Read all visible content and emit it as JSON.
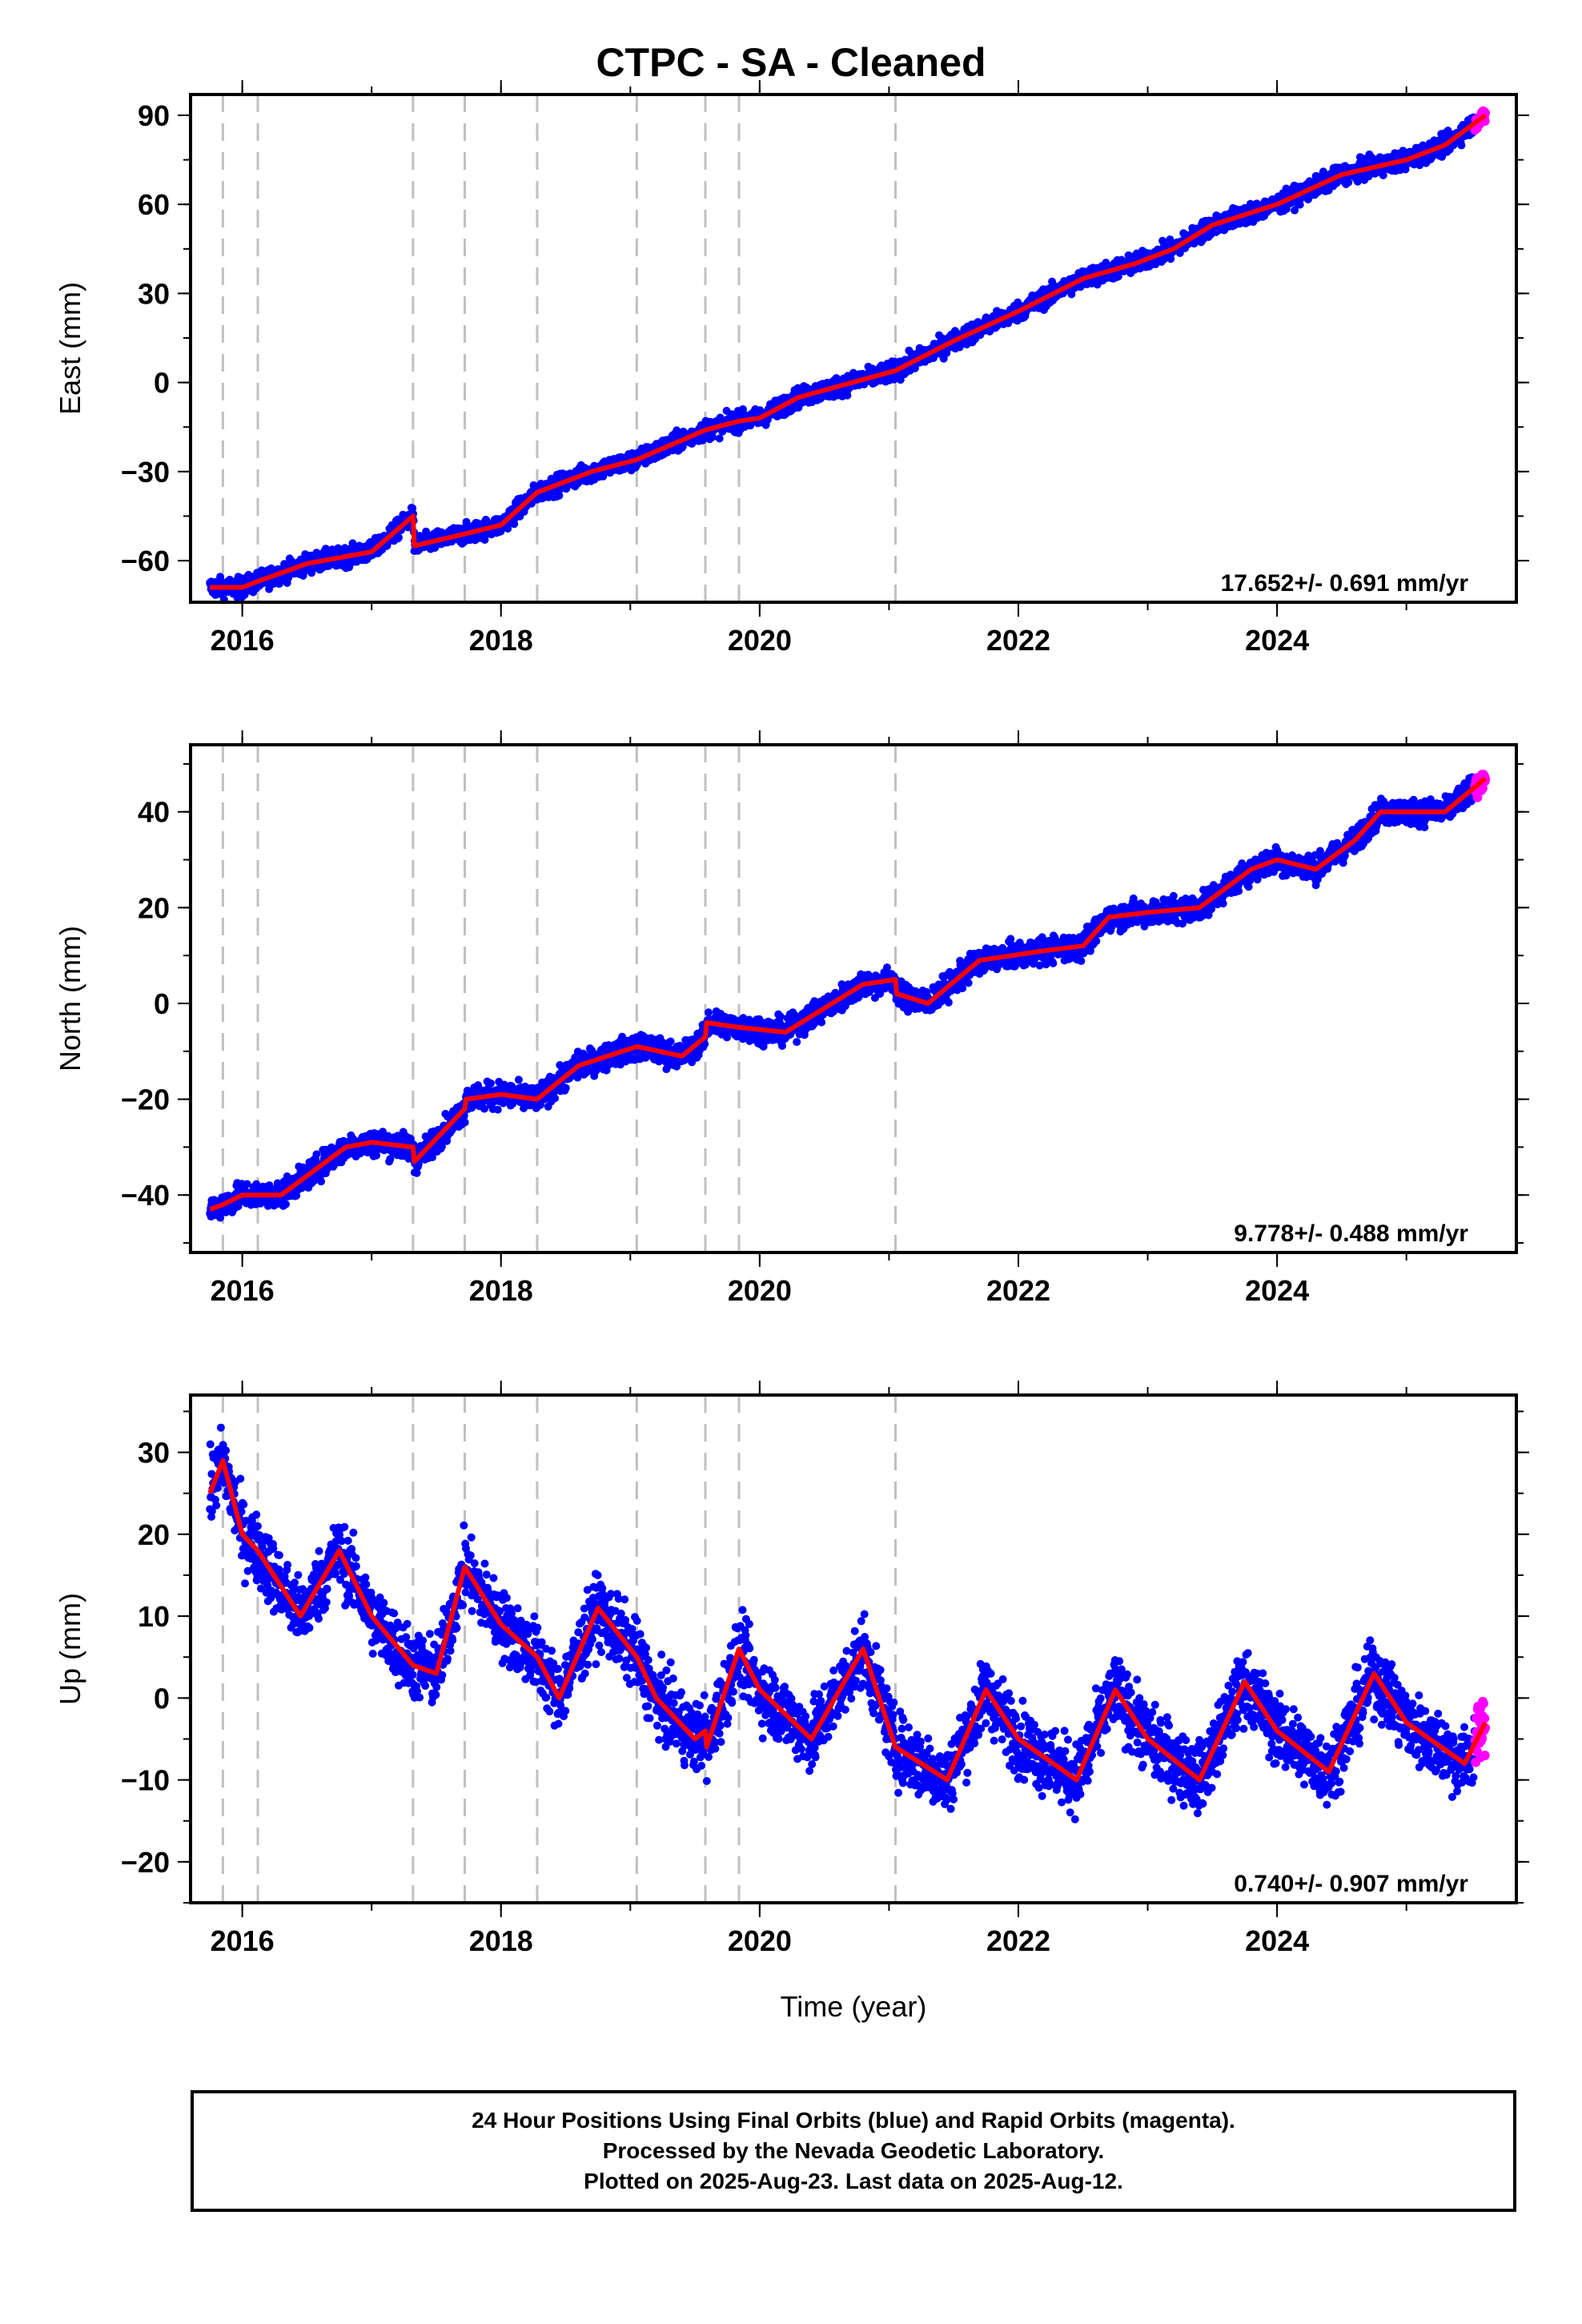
{
  "colors": {
    "final": "#0000ff",
    "rapid": "#ff00ff",
    "model": "#ff0000",
    "events": "#c0c0c0"
  },
  "chart_data": {
    "type": "scatter",
    "title": "CTPC  - SA - Cleaned",
    "xlabel": "Time (year)",
    "events": [
      2015.85,
      2016.12,
      2017.32,
      2017.72,
      2018.28,
      2019.05,
      2019.58,
      2019.84,
      2021.05
    ],
    "final_range": [
      2015.75,
      2025.53
    ],
    "rapid_range": [
      2025.53,
      2025.61
    ],
    "panels": [
      {
        "name": "east",
        "ylabel": "East (mm)",
        "xticks": [
          "2016",
          "2018",
          "2020",
          "2022",
          "2024"
        ],
        "xlim": [
          2015.6,
          2025.85
        ],
        "yticks": [
          "−60",
          "−30",
          "0",
          "30",
          "60",
          "90"
        ],
        "ylim": [
          -74,
          97
        ],
        "rate": "17.652+/- 0.691 mm/yr",
        "model": [
          [
            2015.75,
            -69
          ],
          [
            2015.85,
            -69
          ],
          [
            2016.0,
            -69
          ],
          [
            2016.12,
            -67
          ],
          [
            2016.5,
            -61
          ],
          [
            2017.0,
            -57
          ],
          [
            2017.32,
            -45
          ],
          [
            2017.33,
            -55
          ],
          [
            2017.72,
            -51
          ],
          [
            2018.0,
            -48
          ],
          [
            2018.28,
            -37
          ],
          [
            2018.7,
            -30
          ],
          [
            2019.05,
            -26
          ],
          [
            2019.58,
            -16
          ],
          [
            2019.84,
            -13
          ],
          [
            2020.0,
            -12
          ],
          [
            2020.3,
            -5
          ],
          [
            2020.8,
            1
          ],
          [
            2021.05,
            4
          ],
          [
            2021.5,
            14
          ],
          [
            2022.0,
            24
          ],
          [
            2022.5,
            35
          ],
          [
            2022.9,
            40
          ],
          [
            2023.2,
            45
          ],
          [
            2023.5,
            53
          ],
          [
            2024.0,
            60
          ],
          [
            2024.5,
            70
          ],
          [
            2025.0,
            75
          ],
          [
            2025.3,
            80
          ],
          [
            2025.61,
            90
          ]
        ],
        "scatter_amp": 3
      },
      {
        "name": "north",
        "ylabel": "North (mm)",
        "xticks": [
          "2016",
          "2018",
          "2020",
          "2022",
          "2024"
        ],
        "xlim": [
          2015.6,
          2025.85
        ],
        "yticks": [
          "−40",
          "−20",
          "0",
          "20",
          "40"
        ],
        "ylim": [
          -52,
          54
        ],
        "rate": "9.778+/- 0.488 mm/yr",
        "model": [
          [
            2015.75,
            -43
          ],
          [
            2015.85,
            -42
          ],
          [
            2016.0,
            -40
          ],
          [
            2016.12,
            -40
          ],
          [
            2016.3,
            -40
          ],
          [
            2016.5,
            -36
          ],
          [
            2016.8,
            -30
          ],
          [
            2017.0,
            -29
          ],
          [
            2017.32,
            -30
          ],
          [
            2017.33,
            -33
          ],
          [
            2017.72,
            -22
          ],
          [
            2017.73,
            -20
          ],
          [
            2018.0,
            -19
          ],
          [
            2018.28,
            -20
          ],
          [
            2018.6,
            -13
          ],
          [
            2019.05,
            -9
          ],
          [
            2019.4,
            -11
          ],
          [
            2019.58,
            -7
          ],
          [
            2019.59,
            -4
          ],
          [
            2019.84,
            -5
          ],
          [
            2020.2,
            -6
          ],
          [
            2020.5,
            -1
          ],
          [
            2020.8,
            4
          ],
          [
            2021.05,
            5
          ],
          [
            2021.06,
            2
          ],
          [
            2021.3,
            0
          ],
          [
            2021.7,
            9
          ],
          [
            2022.2,
            11
          ],
          [
            2022.5,
            12
          ],
          [
            2022.7,
            18
          ],
          [
            2023.0,
            19
          ],
          [
            2023.4,
            20
          ],
          [
            2023.8,
            28
          ],
          [
            2024.0,
            30
          ],
          [
            2024.3,
            28
          ],
          [
            2024.6,
            34
          ],
          [
            2024.8,
            40
          ],
          [
            2025.0,
            40
          ],
          [
            2025.3,
            40
          ],
          [
            2025.61,
            47
          ]
        ],
        "scatter_amp": 2.5
      },
      {
        "name": "up",
        "ylabel": "Up (mm)",
        "xticks": [
          "2016",
          "2018",
          "2020",
          "2022",
          "2024"
        ],
        "xlim": [
          2015.6,
          2025.85
        ],
        "yticks": [
          "−20",
          "−10",
          "0",
          "10",
          "20",
          "30"
        ],
        "ylim": [
          -25,
          37
        ],
        "rate": "0.740+/- 0.907 mm/yr",
        "model": [
          [
            2015.75,
            25
          ],
          [
            2015.85,
            29
          ],
          [
            2016.0,
            20
          ],
          [
            2016.12,
            18
          ],
          [
            2016.45,
            10
          ],
          [
            2016.75,
            18
          ],
          [
            2017.0,
            10
          ],
          [
            2017.32,
            4
          ],
          [
            2017.5,
            3
          ],
          [
            2017.72,
            16
          ],
          [
            2018.0,
            9
          ],
          [
            2018.28,
            5
          ],
          [
            2018.45,
            0
          ],
          [
            2018.75,
            11
          ],
          [
            2019.05,
            5
          ],
          [
            2019.2,
            0
          ],
          [
            2019.5,
            -5
          ],
          [
            2019.58,
            -4
          ],
          [
            2019.59,
            -6
          ],
          [
            2019.84,
            6
          ],
          [
            2020.0,
            1
          ],
          [
            2020.4,
            -5
          ],
          [
            2020.8,
            6
          ],
          [
            2021.05,
            -6
          ],
          [
            2021.45,
            -10
          ],
          [
            2021.75,
            1
          ],
          [
            2022.0,
            -5
          ],
          [
            2022.45,
            -10
          ],
          [
            2022.75,
            1
          ],
          [
            2023.0,
            -5
          ],
          [
            2023.4,
            -10
          ],
          [
            2023.75,
            2
          ],
          [
            2024.0,
            -4
          ],
          [
            2024.4,
            -9
          ],
          [
            2024.75,
            3
          ],
          [
            2025.0,
            -3
          ],
          [
            2025.45,
            -8
          ],
          [
            2025.61,
            -3
          ]
        ],
        "scatter_amp": 4
      }
    ]
  },
  "footer": {
    "line1": "24 Hour Positions Using Final Orbits (blue) and Rapid Orbits (magenta).",
    "line2": "Processed by the Nevada Geodetic Laboratory.",
    "line3": "Plotted on 2025-Aug-23. Last data on 2025-Aug-12."
  }
}
